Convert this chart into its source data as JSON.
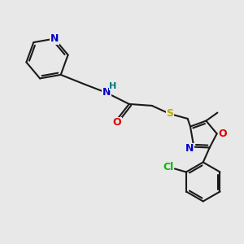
{
  "bg_color": "#e8e8e8",
  "bond_color": "#1a1a1a",
  "atom_colors": {
    "N": "#0000cc",
    "O": "#dd0000",
    "S": "#bbaa00",
    "Cl": "#00bb00",
    "H": "#007777"
  },
  "figsize": [
    3.0,
    3.0
  ],
  "dpi": 100
}
